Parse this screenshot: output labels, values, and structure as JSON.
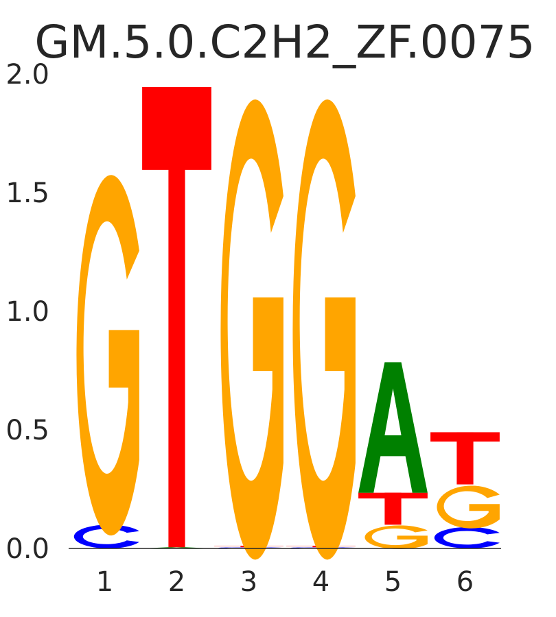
{
  "chart_data": {
    "type": "sequence-logo",
    "title": "GM.5.0.C2H2_ZF.0075",
    "ylim": [
      0,
      2.0
    ],
    "yticks": [
      "0.0",
      "0.5",
      "1.0",
      "1.5",
      "2.0"
    ],
    "colors": {
      "A": "#008000",
      "C": "#0000ff",
      "G": "#ffa500",
      "T": "#ff0000"
    },
    "positions": [
      {
        "label": "1",
        "stack": [
          {
            "base": "C",
            "height": 0.1
          },
          {
            "base": "G",
            "height": 1.52
          }
        ]
      },
      {
        "label": "2",
        "stack": [
          {
            "base": "A",
            "height": 0.005
          },
          {
            "base": "T",
            "height": 1.94
          }
        ]
      },
      {
        "label": "3",
        "stack": [
          {
            "base": "C",
            "height": 0.005
          },
          {
            "base": "T",
            "height": 0.006
          },
          {
            "base": "G",
            "height": 1.94
          }
        ]
      },
      {
        "label": "4",
        "stack": [
          {
            "base": "C",
            "height": 0.005
          },
          {
            "base": "T",
            "height": 0.006
          },
          {
            "base": "G",
            "height": 1.94
          }
        ]
      },
      {
        "label": "5",
        "stack": [
          {
            "base": "G",
            "height": 0.1
          },
          {
            "base": "T",
            "height": 0.135
          },
          {
            "base": "A",
            "height": 0.55
          }
        ]
      },
      {
        "label": "6",
        "stack": [
          {
            "base": "C",
            "height": 0.09
          },
          {
            "base": "G",
            "height": 0.18
          },
          {
            "base": "T",
            "height": 0.22
          }
        ]
      }
    ]
  }
}
